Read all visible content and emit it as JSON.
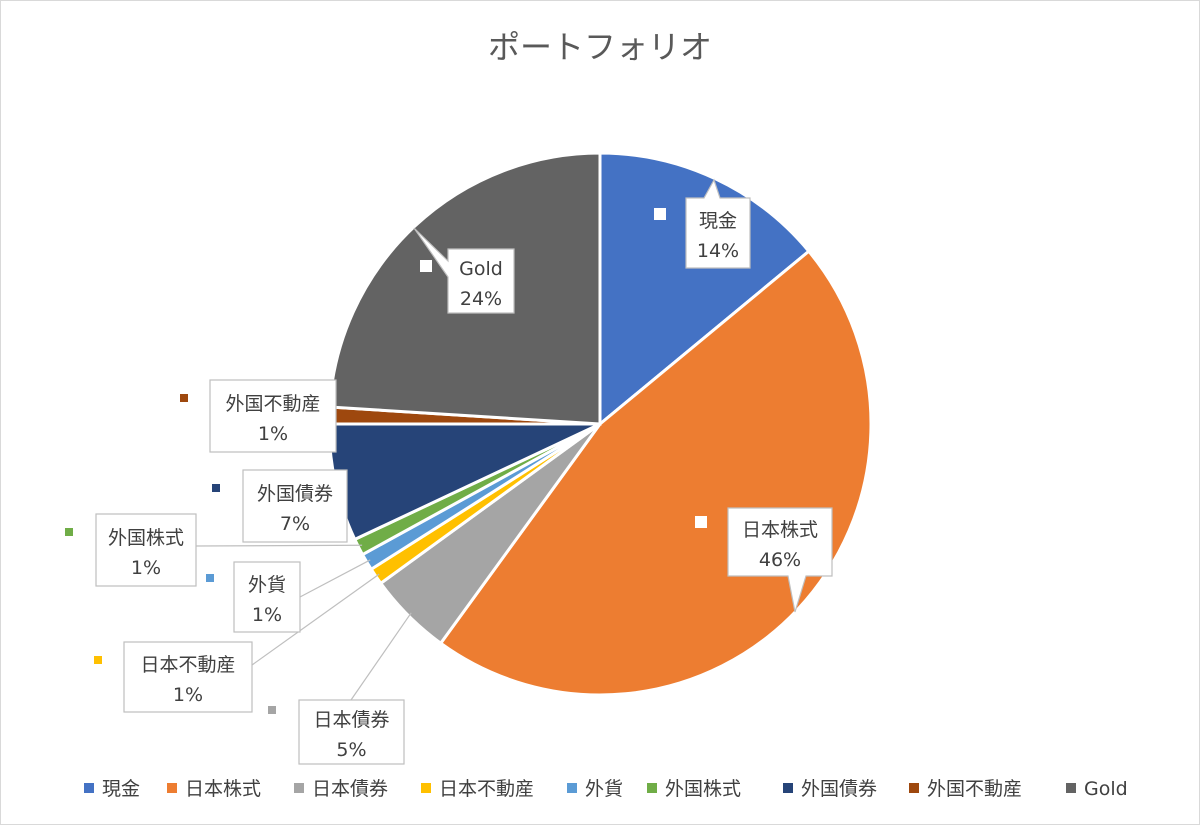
{
  "chart_data": {
    "type": "pie",
    "title": "ポートフォリオ",
    "categories": [
      "現金",
      "日本株式",
      "日本債券",
      "日本不動産",
      "外貨",
      "外国株式",
      "外国債券",
      "外国不動産",
      "Gold"
    ],
    "values": [
      14,
      46,
      5,
      1,
      1,
      1,
      7,
      1,
      24
    ],
    "data_labels": [
      "14%",
      "46%",
      "5%",
      "1%",
      "1%",
      "1%",
      "7%",
      "1%",
      "24%"
    ],
    "colors": [
      "#4472C4",
      "#ED7D31",
      "#A5A5A5",
      "#FFC000",
      "#5B9BD5",
      "#70AD47",
      "#264478",
      "#9E480E",
      "#636363"
    ],
    "legend_position": "bottom"
  }
}
